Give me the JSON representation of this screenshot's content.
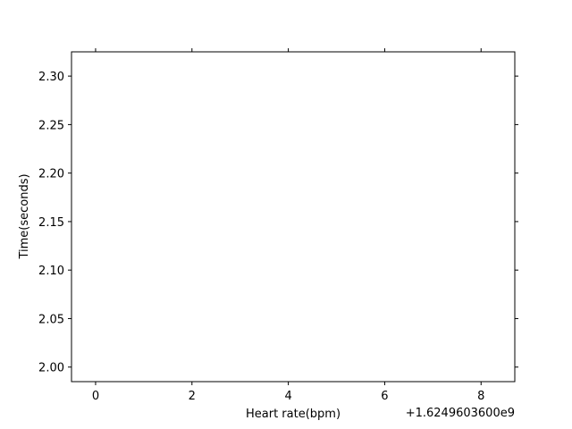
{
  "chart_data": {
    "type": "line",
    "title": "",
    "xlabel": "Heart rate(bpm)",
    "ylabel": "Time(seconds)",
    "x_offset_label": "+1.6249603600e9",
    "xlim": [
      -0.5,
      8.7
    ],
    "ylim": [
      1.985,
      2.325
    ],
    "x_ticks": [
      0,
      2,
      4,
      6,
      8
    ],
    "x_tick_labels": [
      "0",
      "2",
      "4",
      "6",
      "8"
    ],
    "y_ticks": [
      2.0,
      2.05,
      2.1,
      2.15,
      2.2,
      2.25,
      2.3
    ],
    "y_tick_labels": [
      "2.00",
      "2.05",
      "2.10",
      "2.15",
      "2.20",
      "2.25",
      "2.30"
    ],
    "grid": false,
    "series": []
  }
}
